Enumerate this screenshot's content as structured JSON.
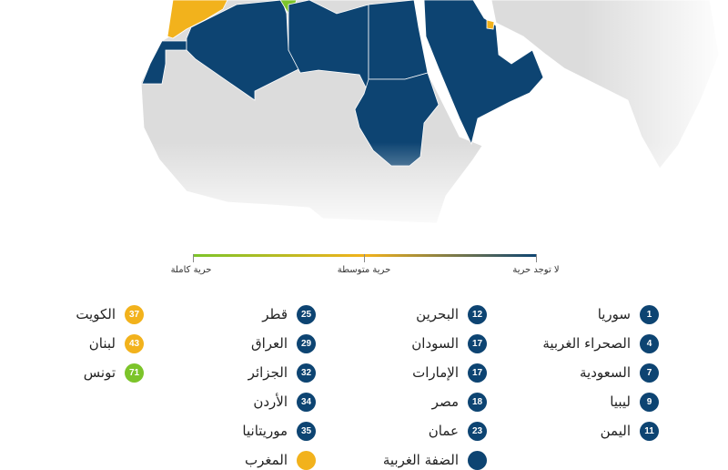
{
  "colors": {
    "none": "#0d4472",
    "medium": "#f2b21c",
    "full": "#7cc42a",
    "land": "#dcdcdc"
  },
  "legend": {
    "none_label": "لا توجد حرية",
    "medium_label": "حرية متوسطة",
    "full_label": "حرية كاملة"
  },
  "columns": [
    [
      {
        "name": "سوريا",
        "score": "1",
        "level": "none"
      },
      {
        "name": "الصحراء الغربية",
        "score": "4",
        "level": "none"
      },
      {
        "name": "السعودية",
        "score": "7",
        "level": "none"
      },
      {
        "name": "ليبيا",
        "score": "9",
        "level": "none"
      },
      {
        "name": "اليمن",
        "score": "11",
        "level": "none"
      }
    ],
    [
      {
        "name": "البحرين",
        "score": "12",
        "level": "none"
      },
      {
        "name": "السودان",
        "score": "17",
        "level": "none"
      },
      {
        "name": "الإمارات",
        "score": "17",
        "level": "none"
      },
      {
        "name": "مصر",
        "score": "18",
        "level": "none"
      },
      {
        "name": "عمان",
        "score": "23",
        "level": "none"
      },
      {
        "name": "الضفة الغربية",
        "score": "",
        "level": "none"
      }
    ],
    [
      {
        "name": "قطر",
        "score": "25",
        "level": "none"
      },
      {
        "name": "العراق",
        "score": "29",
        "level": "none"
      },
      {
        "name": "الجزائر",
        "score": "32",
        "level": "none"
      },
      {
        "name": "الأردن",
        "score": "34",
        "level": "none"
      },
      {
        "name": "موريتانيا",
        "score": "35",
        "level": "none"
      },
      {
        "name": "المغرب",
        "score": "",
        "level": "medium"
      }
    ],
    [
      {
        "name": "الكويت",
        "score": "37",
        "level": "medium"
      },
      {
        "name": "لبنان",
        "score": "43",
        "level": "medium"
      },
      {
        "name": "تونس",
        "score": "71",
        "level": "full"
      }
    ]
  ]
}
